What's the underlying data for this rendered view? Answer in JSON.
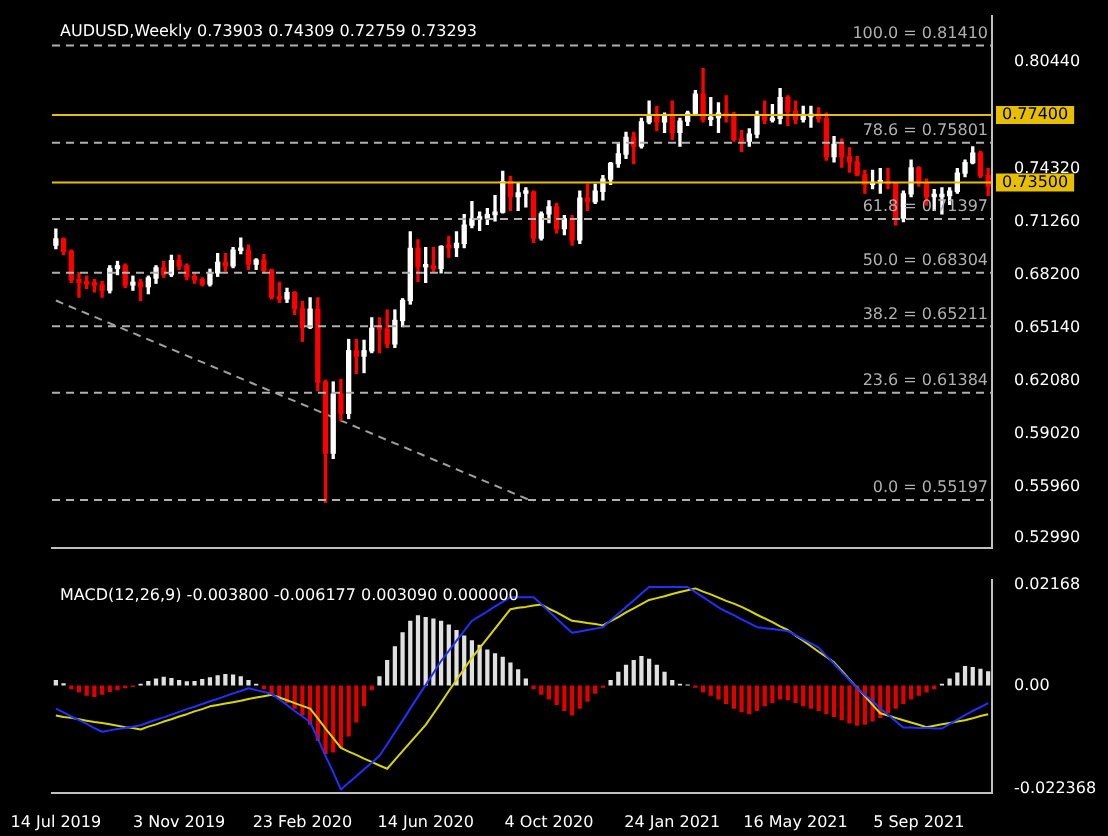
{
  "chart_data": [
    {
      "type": "candlestick",
      "title": "AUDUSD,Weekly 0.73903 0.74309 0.72759 0.73293",
      "categories": [
        null,
        null,
        null,
        null,
        null,
        null,
        null,
        null,
        null,
        null,
        null,
        null,
        null,
        null,
        null,
        null,
        null,
        null,
        null,
        null,
        null,
        null,
        null,
        null,
        null,
        null,
        null,
        null,
        null,
        null,
        null,
        null,
        null,
        null,
        null,
        null,
        null,
        null,
        null,
        null,
        null,
        null,
        null,
        null,
        null,
        null,
        null,
        null,
        null,
        null,
        null,
        null,
        null,
        null,
        null,
        null,
        null,
        null,
        null,
        null,
        null,
        null,
        null,
        null,
        null,
        null,
        null,
        null,
        null,
        null,
        null,
        null,
        null,
        null,
        null,
        null,
        null,
        null,
        null,
        null,
        null,
        null,
        null,
        null,
        null,
        null,
        null,
        null,
        null,
        null,
        null,
        null,
        null,
        null,
        null,
        null,
        null,
        null,
        null,
        null,
        null,
        null,
        null,
        null,
        null,
        null,
        null,
        null,
        null,
        null,
        null,
        null,
        null,
        null,
        null,
        null,
        null,
        null,
        null,
        null,
        null,
        null
      ],
      "ohlc": [
        [
          0.699,
          0.7082,
          0.697,
          0.7025
        ],
        [
          0.7025,
          0.703,
          0.6935,
          0.6953
        ],
        [
          0.6953,
          0.696,
          0.6775,
          0.679
        ],
        [
          0.679,
          0.683,
          0.669,
          0.6775
        ],
        [
          0.6775,
          0.681,
          0.674,
          0.6767
        ],
        [
          0.6767,
          0.679,
          0.672,
          0.676
        ],
        [
          0.676,
          0.678,
          0.669,
          0.673
        ],
        [
          0.673,
          0.687,
          0.6715,
          0.6855
        ],
        [
          0.6855,
          0.6895,
          0.682,
          0.687
        ],
        [
          0.687,
          0.688,
          0.6745,
          0.676
        ],
        [
          0.676,
          0.681,
          0.673,
          0.6775
        ],
        [
          0.6775,
          0.679,
          0.667,
          0.675
        ],
        [
          0.675,
          0.681,
          0.671,
          0.68
        ],
        [
          0.68,
          0.687,
          0.677,
          0.6858
        ],
        [
          0.6858,
          0.6895,
          0.6805,
          0.682
        ],
        [
          0.682,
          0.693,
          0.681,
          0.69
        ],
        [
          0.69,
          0.693,
          0.685,
          0.687
        ],
        [
          0.687,
          0.688,
          0.679,
          0.6808
        ],
        [
          0.6808,
          0.683,
          0.677,
          0.679
        ],
        [
          0.679,
          0.68,
          0.6755,
          0.6765
        ],
        [
          0.6765,
          0.685,
          0.6755,
          0.683
        ],
        [
          0.683,
          0.694,
          0.681,
          0.689
        ],
        [
          0.689,
          0.694,
          0.684,
          0.687
        ],
        [
          0.687,
          0.6975,
          0.686,
          0.696
        ],
        [
          0.696,
          0.703,
          0.694,
          0.696
        ],
        [
          0.696,
          0.699,
          0.685,
          0.688
        ],
        [
          0.688,
          0.691,
          0.685,
          0.6903
        ],
        [
          0.6903,
          0.6935,
          0.683,
          0.6844
        ],
        [
          0.6844,
          0.685,
          0.668,
          0.669
        ],
        [
          0.669,
          0.6775,
          0.666,
          0.668
        ],
        [
          0.668,
          0.674,
          0.666,
          0.6715
        ],
        [
          0.6715,
          0.672,
          0.659,
          0.6625
        ],
        [
          0.6625,
          0.6665,
          0.6435,
          0.6515
        ],
        [
          0.6515,
          0.6685,
          0.651,
          0.662
        ],
        [
          0.662,
          0.6685,
          0.615,
          0.62
        ],
        [
          0.62,
          0.621,
          0.5506,
          0.579
        ],
        [
          0.579,
          0.62,
          0.576,
          0.613
        ],
        [
          0.613,
          0.6215,
          0.598,
          0.602
        ],
        [
          0.602,
          0.6445,
          0.599,
          0.638
        ],
        [
          0.638,
          0.6445,
          0.625,
          0.635
        ],
        [
          0.635,
          0.644,
          0.6255,
          0.638
        ],
        [
          0.638,
          0.657,
          0.637,
          0.651
        ],
        [
          0.651,
          0.657,
          0.637,
          0.6505
        ],
        [
          0.6505,
          0.6615,
          0.64,
          0.642
        ],
        [
          0.642,
          0.6615,
          0.64,
          0.6555
        ],
        [
          0.6555,
          0.668,
          0.652,
          0.667
        ],
        [
          0.667,
          0.7065,
          0.665,
          0.697
        ],
        [
          0.697,
          0.702,
          0.678,
          0.6865
        ],
        [
          0.6865,
          0.6975,
          0.6775,
          0.687
        ],
        [
          0.687,
          0.6975,
          0.6835,
          0.6855
        ],
        [
          0.6855,
          0.6985,
          0.683,
          0.698
        ],
        [
          0.698,
          0.704,
          0.692,
          0.6975
        ],
        [
          0.6975,
          0.7065,
          0.6925,
          0.7
        ],
        [
          0.7,
          0.7165,
          0.6975,
          0.7105
        ],
        [
          0.7105,
          0.724,
          0.709,
          0.714
        ],
        [
          0.714,
          0.718,
          0.7075,
          0.7145
        ],
        [
          0.7145,
          0.72,
          0.711,
          0.7165
        ],
        [
          0.7165,
          0.7275,
          0.713,
          0.718
        ],
        [
          0.718,
          0.7414,
          0.7175,
          0.7355
        ],
        [
          0.7355,
          0.7385,
          0.719,
          0.727
        ],
        [
          0.727,
          0.7345,
          0.719,
          0.729
        ],
        [
          0.729,
          0.732,
          0.721,
          0.7295
        ],
        [
          0.7295,
          0.73,
          0.7006,
          0.703
        ],
        [
          0.703,
          0.718,
          0.702,
          0.717
        ],
        [
          0.717,
          0.7245,
          0.712,
          0.721
        ],
        [
          0.721,
          0.723,
          0.706,
          0.7085
        ],
        [
          0.7085,
          0.716,
          0.705,
          0.714
        ],
        [
          0.714,
          0.716,
          0.699,
          0.702
        ],
        [
          0.702,
          0.73,
          0.7,
          0.726
        ],
        [
          0.726,
          0.734,
          0.719,
          0.724
        ],
        [
          0.724,
          0.734,
          0.723,
          0.73
        ],
        [
          0.73,
          0.739,
          0.725,
          0.737
        ],
        [
          0.737,
          0.7465,
          0.734,
          0.746
        ],
        [
          0.746,
          0.758,
          0.744,
          0.7515
        ],
        [
          0.7515,
          0.764,
          0.749,
          0.761
        ],
        [
          0.761,
          0.764,
          0.746,
          0.756
        ],
        [
          0.756,
          0.772,
          0.755,
          0.77
        ],
        [
          0.77,
          0.782,
          0.769,
          0.774
        ],
        [
          0.774,
          0.779,
          0.765,
          0.77
        ],
        [
          0.77,
          0.775,
          0.764,
          0.773
        ],
        [
          0.773,
          0.782,
          0.76,
          0.764
        ],
        [
          0.764,
          0.772,
          0.756,
          0.7705
        ],
        [
          0.7705,
          0.776,
          0.768,
          0.775
        ],
        [
          0.775,
          0.788,
          0.774,
          0.786
        ],
        [
          0.786,
          0.8007,
          0.77,
          0.7715
        ],
        [
          0.7715,
          0.784,
          0.768,
          0.7725
        ],
        [
          0.7725,
          0.781,
          0.764,
          0.775
        ],
        [
          0.775,
          0.785,
          0.77,
          0.7735
        ],
        [
          0.7735,
          0.7755,
          0.759,
          0.76
        ],
        [
          0.76,
          0.765,
          0.753,
          0.759
        ],
        [
          0.759,
          0.766,
          0.756,
          0.763
        ],
        [
          0.763,
          0.776,
          0.761,
          0.774
        ],
        [
          0.774,
          0.782,
          0.769,
          0.771
        ],
        [
          0.771,
          0.78,
          0.77,
          0.772
        ],
        [
          0.772,
          0.7891,
          0.769,
          0.784
        ],
        [
          0.784,
          0.785,
          0.768,
          0.776
        ],
        [
          0.776,
          0.782,
          0.769,
          0.7715
        ],
        [
          0.7715,
          0.779,
          0.77,
          0.773
        ],
        [
          0.773,
          0.779,
          0.767,
          0.7745
        ],
        [
          0.7745,
          0.778,
          0.77,
          0.772
        ],
        [
          0.772,
          0.775,
          0.748,
          0.75
        ],
        [
          0.75,
          0.7615,
          0.747,
          0.757
        ],
        [
          0.757,
          0.76,
          0.744,
          0.75
        ],
        [
          0.75,
          0.755,
          0.741,
          0.747
        ],
        [
          0.747,
          0.75,
          0.739,
          0.7395
        ],
        [
          0.7395,
          0.742,
          0.729,
          0.734
        ],
        [
          0.734,
          0.742,
          0.7315,
          0.735
        ],
        [
          0.735,
          0.743,
          0.729,
          0.7355
        ],
        [
          0.7355,
          0.743,
          0.7315,
          0.7345
        ],
        [
          0.7345,
          0.735,
          0.7106,
          0.7145
        ],
        [
          0.7145,
          0.73,
          0.7125,
          0.7285
        ],
        [
          0.7285,
          0.748,
          0.727,
          0.7435
        ],
        [
          0.7435,
          0.744,
          0.733,
          0.735
        ],
        [
          0.735,
          0.737,
          0.722,
          0.727
        ],
        [
          0.727,
          0.731,
          0.719,
          0.727
        ],
        [
          0.727,
          0.732,
          0.717,
          0.7275
        ],
        [
          0.7275,
          0.732,
          0.7225,
          0.73
        ],
        [
          0.73,
          0.743,
          0.729,
          0.7405
        ],
        [
          0.7405,
          0.748,
          0.7385,
          0.7465
        ],
        [
          0.7465,
          0.7556,
          0.746,
          0.752
        ],
        [
          0.752,
          0.753,
          0.738,
          0.739
        ],
        [
          0.73903,
          0.74309,
          0.72759,
          0.73293
        ]
      ],
      "colors": [
        "#ffffff",
        "#ff0000",
        "#ff0000",
        "#ff0000",
        "#ff0000",
        "#ff0000",
        "#ff0000",
        "#ffffff",
        "#ffffff",
        "#ff0000",
        "#ffffff",
        "#ff0000",
        "#ffffff",
        "#ffffff",
        "#ff0000",
        "#ffffff",
        "#ff0000",
        "#ff0000",
        "#ff0000",
        "#ff0000",
        "#ffffff",
        "#ffffff",
        "#ff0000",
        "#ffffff",
        "#ffffff",
        "#ff0000",
        "#ffffff",
        "#ff0000",
        "#ff0000",
        "#ff0000",
        "#ffffff",
        "#ff0000",
        "#ff0000",
        "#ffffff",
        "#ff0000",
        "#ff0000",
        "#ffffff",
        "#ff0000",
        "#ffffff",
        "#ff0000",
        "#ffffff",
        "#ffffff",
        "#ff0000",
        "#ff0000",
        "#ffffff",
        "#ffffff",
        "#ffffff",
        "#ff0000",
        "#ffffff",
        "#ff0000",
        "#ffffff",
        "#ff0000",
        "#ffffff",
        "#ffffff",
        "#ffffff",
        "#ffffff",
        "#ffffff",
        "#ffffff",
        "#ffffff",
        "#ff0000",
        "#ffffff",
        "#ffffff",
        "#ff0000",
        "#ffffff",
        "#ffffff",
        "#ff0000",
        "#ffffff",
        "#ff0000",
        "#ffffff",
        "#ff0000",
        "#ffffff",
        "#ffffff",
        "#ffffff",
        "#ffffff",
        "#ffffff",
        "#ff0000",
        "#ffffff",
        "#ffffff",
        "#ff0000",
        "#ffffff",
        "#ff0000",
        "#ffffff",
        "#ffffff",
        "#ffffff",
        "#ff0000",
        "#ffffff",
        "#ffffff",
        "#ff0000",
        "#ff0000",
        "#ff0000",
        "#ffffff",
        "#ffffff",
        "#ff0000",
        "#ffffff",
        "#ffffff",
        "#ff0000",
        "#ff0000",
        "#ffffff",
        "#ffffff",
        "#ff0000",
        "#ff0000",
        "#ffffff",
        "#ff0000",
        "#ff0000",
        "#ff0000",
        "#ff0000",
        "#ffffff",
        "#ffffff",
        "#ff0000",
        "#ff0000",
        "#ffffff",
        "#ffffff",
        "#ff0000",
        "#ff0000",
        "#ffffff",
        "#ffffff",
        "#ffffff",
        "#ffffff",
        "#ffffff",
        "#ffffff",
        "#ff0000",
        "#ff0000"
      ],
      "series": [
        {
          "type": "line",
          "color": "#a0a0a0",
          "line_style": "dashed",
          "values": [
            0.667,
            null,
            null,
            null,
            null,
            null,
            null,
            null,
            null,
            null,
            null,
            null,
            null,
            null,
            null,
            null,
            null,
            null,
            null,
            null,
            null,
            null,
            null,
            null,
            null,
            null,
            null,
            null,
            null,
            null,
            null,
            null,
            null,
            null,
            null,
            null,
            null,
            null,
            null,
            null,
            null,
            null,
            null,
            null,
            null,
            null,
            null,
            null,
            null,
            null,
            null,
            null,
            null,
            null,
            null,
            null,
            null,
            null,
            null,
            null,
            null,
            null,
            0.551,
            null,
            null,
            null,
            null,
            null,
            null,
            null,
            null,
            null,
            null,
            null,
            null,
            null,
            null,
            null,
            null,
            null,
            null,
            null,
            null,
            null,
            null,
            null,
            null,
            null,
            null,
            null,
            null,
            null,
            null,
            null,
            null,
            null,
            null,
            null,
            null,
            null,
            null,
            null,
            null,
            null,
            null,
            null,
            null,
            null,
            null,
            null,
            null,
            null,
            null,
            null,
            null,
            null,
            null,
            null,
            null,
            null,
            null,
            null
          ]
        }
      ],
      "ylim": [
        0.5243,
        0.8313
      ],
      "yticks": [
        {
          "value": 0.5299,
          "label": "0.52990"
        },
        {
          "value": 0.5596,
          "label": "0.55960"
        },
        {
          "value": 0.5902,
          "label": "0.59020"
        },
        {
          "value": 0.6208,
          "label": "0.62080"
        },
        {
          "value": 0.6514,
          "label": "0.65140"
        },
        {
          "value": 0.682,
          "label": "0.68200"
        },
        {
          "value": 0.7126,
          "label": "0.71260"
        },
        {
          "value": 0.7432,
          "label": "0.74320"
        },
        {
          "value": 0.8044,
          "label": "0.80440"
        }
      ],
      "tick_labels": "y",
      "ref_lines": [
        {
          "axis": "y",
          "value": 0.8141,
          "label": "100.0 = 0.81410",
          "color": "#b0b0b0",
          "line_style": "dashed"
        },
        {
          "axis": "y",
          "value": 0.75801,
          "label": "78.6 = 0.75801",
          "color": "#b0b0b0",
          "line_style": "dashed"
        },
        {
          "axis": "y",
          "value": 0.71397,
          "label": "61.8 = 0.71397",
          "color": "#b0b0b0",
          "line_style": "dashed"
        },
        {
          "axis": "y",
          "value": 0.68304,
          "label": "50.0 = 0.68304",
          "color": "#b0b0b0",
          "line_style": "dashed"
        },
        {
          "axis": "y",
          "value": 0.65211,
          "label": "38.2 = 0.65211",
          "color": "#b0b0b0",
          "line_style": "dashed"
        },
        {
          "axis": "y",
          "value": 0.61384,
          "label": "23.6 = 0.61384",
          "color": "#b0b0b0",
          "line_style": "dashed"
        },
        {
          "axis": "y",
          "value": 0.55197,
          "label": "0.0 = 0.55197",
          "color": "#b0b0b0",
          "line_style": "dashed"
        },
        {
          "axis": "y",
          "value": 0.774,
          "label": "0.77400",
          "color": "#e6c000",
          "line_style": "solid"
        },
        {
          "axis": "y",
          "value": 0.735,
          "label": "0.73500",
          "color": "#e6c000",
          "line_style": "solid"
        }
      ]
    },
    {
      "type": "bar",
      "title": "MACD(12,26,9) -0.003800 -0.006177 0.003090 0.000000",
      "categories": [
        "14 Jul 2019",
        null,
        null,
        null,
        null,
        null,
        null,
        null,
        null,
        null,
        null,
        null,
        null,
        null,
        null,
        null,
        "3 Nov 2019",
        null,
        null,
        null,
        null,
        null,
        null,
        null,
        null,
        null,
        null,
        null,
        null,
        null,
        null,
        null,
        "23 Feb 2020",
        null,
        null,
        null,
        null,
        null,
        null,
        null,
        null,
        null,
        null,
        null,
        null,
        null,
        null,
        null,
        "14 Jun 2020",
        null,
        null,
        null,
        null,
        null,
        null,
        null,
        null,
        null,
        null,
        null,
        null,
        null,
        null,
        null,
        "4 Oct 2020",
        null,
        null,
        null,
        null,
        null,
        null,
        null,
        null,
        null,
        null,
        null,
        null,
        null,
        null,
        null,
        "24 Jan 2021",
        null,
        null,
        null,
        null,
        null,
        null,
        null,
        null,
        null,
        null,
        null,
        null,
        null,
        null,
        null,
        "16 May 2021",
        null,
        null,
        null,
        null,
        null,
        null,
        null,
        null,
        null,
        null,
        null,
        null,
        null,
        null,
        null,
        "5 Sep 2021",
        null,
        null,
        null,
        null,
        null,
        null,
        null,
        null,
        null
      ],
      "series": [
        {
          "color": "#e0e0e0",
          "values": [
            0.0012,
            0.0005,
            null,
            null,
            null,
            null,
            null,
            null,
            null,
            null,
            null,
            0.0004,
            0.001,
            0.0015,
            0.0019,
            0.0016,
            0.0012,
            0.0009,
            0.001,
            0.0014,
            0.0018,
            0.0022,
            0.0025,
            0.0024,
            0.002,
            0.0012,
            0.0004,
            null,
            null,
            null,
            null,
            null,
            null,
            null,
            null,
            null,
            null,
            null,
            null,
            null,
            null,
            null,
            0.002,
            0.0055,
            0.0085,
            0.0115,
            0.014,
            0.0152,
            0.0148,
            0.0145,
            0.014,
            0.0132,
            0.012,
            0.0108,
            0.0098,
            0.0088,
            0.0078,
            0.007,
            0.0062,
            0.005,
            0.0035,
            0.0015,
            null,
            null,
            null,
            null,
            null,
            null,
            null,
            null,
            null,
            null,
            0.0012,
            0.003,
            0.0045,
            0.0055,
            0.0064,
            0.0058,
            0.0045,
            0.003,
            0.0012,
            0.0004,
            0.0002,
            null,
            null,
            null,
            null,
            null,
            null,
            null,
            null,
            null,
            null,
            null,
            null,
            null,
            null,
            null,
            null,
            null,
            null,
            null,
            null,
            null,
            null,
            null,
            null,
            null,
            null,
            null,
            null,
            null,
            null,
            null,
            null,
            0.0004,
            0.0015,
            0.0028,
            0.0042,
            0.004,
            0.0036,
            0.0031
          ]
        },
        {
          "color": "#e00000",
          "values": [
            null,
            null,
            -0.0008,
            -0.0015,
            -0.0022,
            -0.0025,
            -0.002,
            -0.0014,
            -0.001,
            -0.0006,
            -0.0003,
            null,
            null,
            null,
            null,
            null,
            null,
            null,
            null,
            null,
            null,
            null,
            null,
            null,
            null,
            null,
            null,
            -0.0008,
            -0.002,
            -0.003,
            -0.0038,
            -0.005,
            -0.0065,
            -0.0085,
            -0.012,
            -0.0148,
            -0.0145,
            -0.0135,
            -0.011,
            -0.008,
            -0.0045,
            -0.001,
            null,
            null,
            null,
            null,
            null,
            null,
            null,
            null,
            null,
            null,
            null,
            null,
            null,
            null,
            null,
            null,
            null,
            null,
            null,
            null,
            -0.0008,
            -0.002,
            -0.003,
            -0.0042,
            -0.0055,
            -0.0065,
            -0.005,
            -0.0035,
            -0.0018,
            -0.0005,
            null,
            null,
            null,
            null,
            null,
            null,
            null,
            null,
            null,
            null,
            null,
            -0.0005,
            -0.0015,
            -0.0022,
            -0.003,
            -0.004,
            -0.005,
            -0.0058,
            -0.0062,
            -0.0055,
            -0.0045,
            -0.0038,
            -0.003,
            -0.0032,
            -0.0038,
            -0.0045,
            -0.005,
            -0.0055,
            -0.0062,
            -0.0068,
            -0.0075,
            -0.0082,
            -0.0087,
            -0.0085,
            -0.0078,
            -0.007,
            -0.006,
            -0.005,
            -0.004,
            -0.003,
            -0.0022,
            -0.0015,
            -0.0008,
            null,
            null,
            null,
            null,
            null,
            null,
            null
          ]
        },
        {
          "type": "line",
          "color": "#2030ff",
          "values": [
            -0.005,
            -0.0058,
            -0.0067,
            -0.0075,
            -0.0083,
            -0.0092,
            -0.01,
            -0.0097,
            -0.0094,
            -0.0092,
            -0.0089,
            -0.0086,
            -0.008,
            -0.0074,
            -0.0069,
            -0.0063,
            -0.0057,
            -0.0051,
            -0.0046,
            -0.004,
            -0.0034,
            -0.0029,
            -0.0023,
            -0.0017,
            -0.0012,
            -0.0006,
            -0.001,
            -0.0014,
            -0.0018,
            -0.003,
            -0.0042,
            -0.0055,
            -0.0067,
            -0.0079,
            -0.0115,
            -0.0152,
            -0.0188,
            -0.0225,
            -0.021,
            -0.0196,
            -0.0181,
            -0.0167,
            -0.0152,
            -0.0127,
            -0.0101,
            -0.0076,
            -0.005,
            -0.0024,
            0.0001,
            0.0027,
            0.0053,
            0.0075,
            0.0097,
            0.0118,
            0.014,
            0.015,
            0.016,
            0.0171,
            0.0181,
            0.0191,
            0.0191,
            0.0191,
            0.0191,
            0.0176,
            0.016,
            0.0145,
            0.0129,
            0.0114,
            0.0117,
            0.012,
            0.0123,
            0.0126,
            0.0141,
            0.0155,
            0.017,
            0.0184,
            0.0199,
            0.0213,
            0.0213,
            0.0213,
            0.0213,
            0.0213,
            0.0213,
            0.0202,
            0.0191,
            0.018,
            0.0169,
            0.016,
            0.0152,
            0.0143,
            0.0135,
            0.0126,
            0.0124,
            0.0122,
            0.012,
            0.0118,
            0.0109,
            0.01,
            0.0091,
            0.0082,
            0.0064,
            0.0047,
            0.0029,
            0.0012,
            -0.0006,
            -0.002,
            -0.0034,
            -0.0049,
            -0.0063,
            -0.0077,
            -0.0091,
            -0.0091,
            -0.0092,
            -0.0092,
            -0.0093,
            -0.0093,
            -0.0083,
            -0.0074,
            -0.0064,
            -0.0055,
            -0.0047,
            -0.0038
          ]
        },
        {
          "type": "line",
          "color": "#d8d800",
          "values": [
            -0.0065,
            -0.0068,
            -0.007,
            -0.0073,
            -0.0076,
            -0.0079,
            -0.0081,
            -0.0084,
            -0.0087,
            -0.009,
            -0.0092,
            -0.0095,
            -0.0089,
            -0.0084,
            -0.0078,
            -0.0073,
            -0.0067,
            -0.0062,
            -0.0056,
            -0.0051,
            -0.0045,
            -0.0042,
            -0.0039,
            -0.0036,
            -0.0033,
            -0.0029,
            -0.0026,
            -0.0023,
            -0.002,
            -0.0026,
            -0.0032,
            -0.0038,
            -0.0044,
            -0.005,
            -0.0071,
            -0.0093,
            -0.0114,
            -0.0135,
            -0.0143,
            -0.015,
            -0.0158,
            -0.0165,
            -0.0173,
            -0.018,
            -0.0161,
            -0.0142,
            -0.0123,
            -0.0104,
            -0.0085,
            -0.0061,
            -0.0037,
            -0.0012,
            0.0012,
            0.0036,
            0.006,
            0.0081,
            0.0102,
            0.0123,
            0.0144,
            0.0165,
            0.0168,
            0.017,
            0.0173,
            0.0175,
            0.0166,
            0.0158,
            0.0149,
            0.014,
            0.0138,
            0.0135,
            0.0133,
            0.013,
            0.0139,
            0.0148,
            0.0158,
            0.0167,
            0.0176,
            0.0185,
            0.0189,
            0.0193,
            0.0198,
            0.0202,
            0.0206,
            0.021,
            0.0203,
            0.0197,
            0.019,
            0.0183,
            0.0177,
            0.017,
            0.0162,
            0.0153,
            0.0145,
            0.0137,
            0.0128,
            0.012,
            0.0108,
            0.0097,
            0.0085,
            0.0073,
            0.0062,
            0.005,
            0.0032,
            0.0013,
            -0.0005,
            -0.0023,
            -0.0042,
            -0.006,
            -0.0065,
            -0.007,
            -0.0075,
            -0.008,
            -0.0085,
            -0.009,
            -0.0087,
            -0.0084,
            -0.0081,
            -0.0078,
            -0.0075,
            -0.0071,
            -0.0066,
            -0.0062
          ]
        }
      ],
      "ylim": [
        -0.0232,
        0.0229
      ],
      "yticks": [
        {
          "value": -0.022368,
          "label": "-0.022368"
        },
        {
          "value": 0,
          "label": "0.00"
        },
        {
          "value": 0.02168,
          "label": "0.02168"
        }
      ]
    }
  ]
}
